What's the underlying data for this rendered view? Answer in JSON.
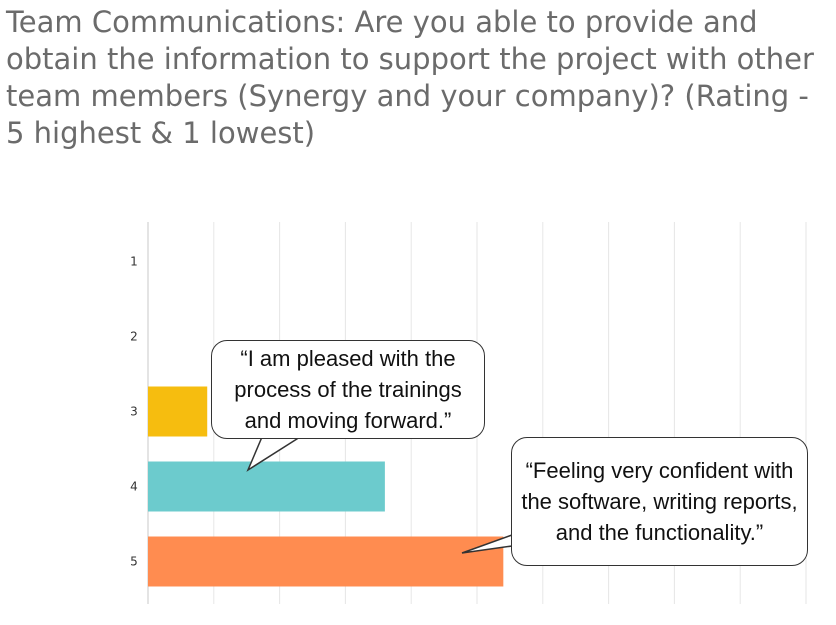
{
  "title": "Team Communications: Are you able to provide and obtain the information to support the project with other team members (Synergy and your company)?  (Rating - 5 highest & 1 lowest)",
  "callouts": [
    {
      "text": "“I am pleased with the process of the trainings and moving forward.”"
    },
    {
      "text": "“Feeling very confident with the software, writing reports, and the functionality.”"
    }
  ],
  "chart_data": {
    "type": "bar",
    "orientation": "horizontal",
    "categories": [
      "1",
      "2",
      "3",
      "4",
      "5"
    ],
    "values": [
      0,
      0,
      9,
      36,
      54
    ],
    "colors": [
      "#f9bf0f",
      "#f9bf0f",
      "#f6bd0f",
      "#6ccbcd",
      "#ff8c50"
    ],
    "xlim": [
      0,
      100
    ],
    "x_gridlines": true,
    "title": "",
    "xlabel": "",
    "ylabel": ""
  }
}
